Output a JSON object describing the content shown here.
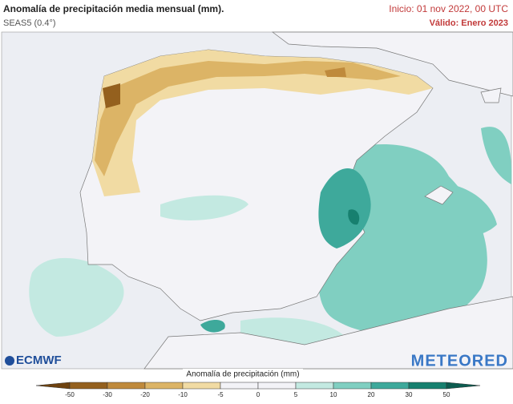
{
  "header": {
    "title": "Anomalía de precipitación media mensual (mm).",
    "subtitle": "SEAS5 (0.4°)",
    "init": "Inicio: 01 nov 2022, 00 UTC",
    "valid": "Válido: Enero 2023"
  },
  "logos": {
    "left": "ECMWF",
    "right": "METEORED"
  },
  "legend": {
    "title": "Anomalía de precipitación (mm)",
    "ticks": [
      -50,
      -30,
      -20,
      -10,
      -5,
      0,
      5,
      10,
      20,
      30,
      50
    ],
    "colors": [
      "#6e420f",
      "#94601e",
      "#bf8a3c",
      "#dcb466",
      "#f1dba3",
      "#f3f3f7",
      "#f3f3f7",
      "#c3e9e1",
      "#80cfc1",
      "#3ea99b",
      "#17806f",
      "#0c5c50"
    ]
  }
}
